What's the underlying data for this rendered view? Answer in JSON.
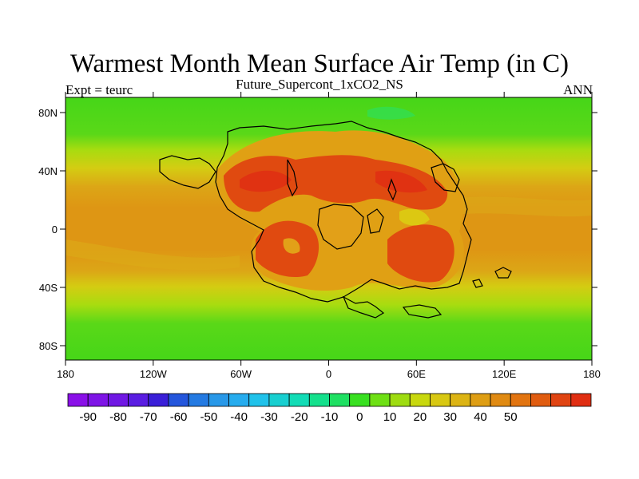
{
  "header": {
    "title": "Warmest Month Mean Surface Air Temp (in C)",
    "subtitle": "Future_Supercont_1xCO2_NS",
    "left_label": "Expt = teurc",
    "right_label": "ANN"
  },
  "map": {
    "x_ticks": [
      "180",
      "120W",
      "60W",
      "0",
      "60E",
      "120E",
      "180"
    ],
    "y_ticks": [
      "80N",
      "40N",
      "0",
      "40S",
      "80S"
    ]
  },
  "colorbar": {
    "labels": [
      "-90",
      "-80",
      "-70",
      "-60",
      "-50",
      "-40",
      "-30",
      "-20",
      "-10",
      "0",
      "10",
      "20",
      "30",
      "40",
      "50"
    ],
    "colors": [
      "#8a10e8",
      "#7e14e6",
      "#7018e4",
      "#5a1de2",
      "#3a1fd8",
      "#2456dc",
      "#247ae2",
      "#2898e8",
      "#26acee",
      "#20c2ea",
      "#18cfd0",
      "#12dcb6",
      "#14e08c",
      "#1ee062",
      "#38e020",
      "#6ee014",
      "#9edc10",
      "#c8d80e",
      "#d8c812",
      "#dcb414",
      "#de9e14",
      "#e08a12",
      "#e27410",
      "#e05c10",
      "#e04412",
      "#e02e12"
    ]
  }
}
